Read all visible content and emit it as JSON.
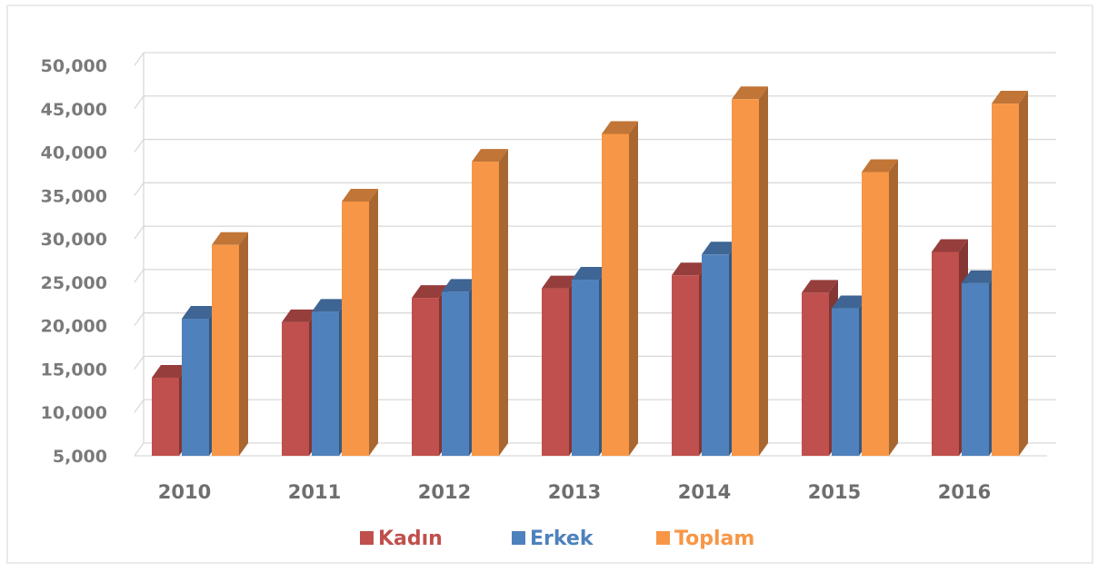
{
  "chart_data": {
    "type": "bar",
    "title": "",
    "xlabel": "",
    "ylabel": "",
    "categories": [
      "2010",
      "2011",
      "2012",
      "2013",
      "2014",
      "2015",
      "2016"
    ],
    "series": [
      {
        "name": "Kadın",
        "color": "#c0504d",
        "values": [
          14000,
          20400,
          23200,
          24300,
          25800,
          23800,
          28500
        ]
      },
      {
        "name": "Erkek",
        "color": "#4f81bd",
        "values": [
          20800,
          21600,
          23900,
          25300,
          28200,
          22000,
          24900
        ]
      },
      {
        "name": "Toplam",
        "color": "#f79646",
        "values": [
          29300,
          34300,
          38900,
          42100,
          46100,
          37700,
          45600
        ]
      }
    ],
    "ylim": [
      5000,
      50000
    ],
    "yticks": [
      "5,000",
      "10,000",
      "15,000",
      "20,000",
      "25,000",
      "30,000",
      "35,000",
      "40,000",
      "45,000",
      "50,000"
    ],
    "grid": true,
    "legend_position": "bottom"
  }
}
